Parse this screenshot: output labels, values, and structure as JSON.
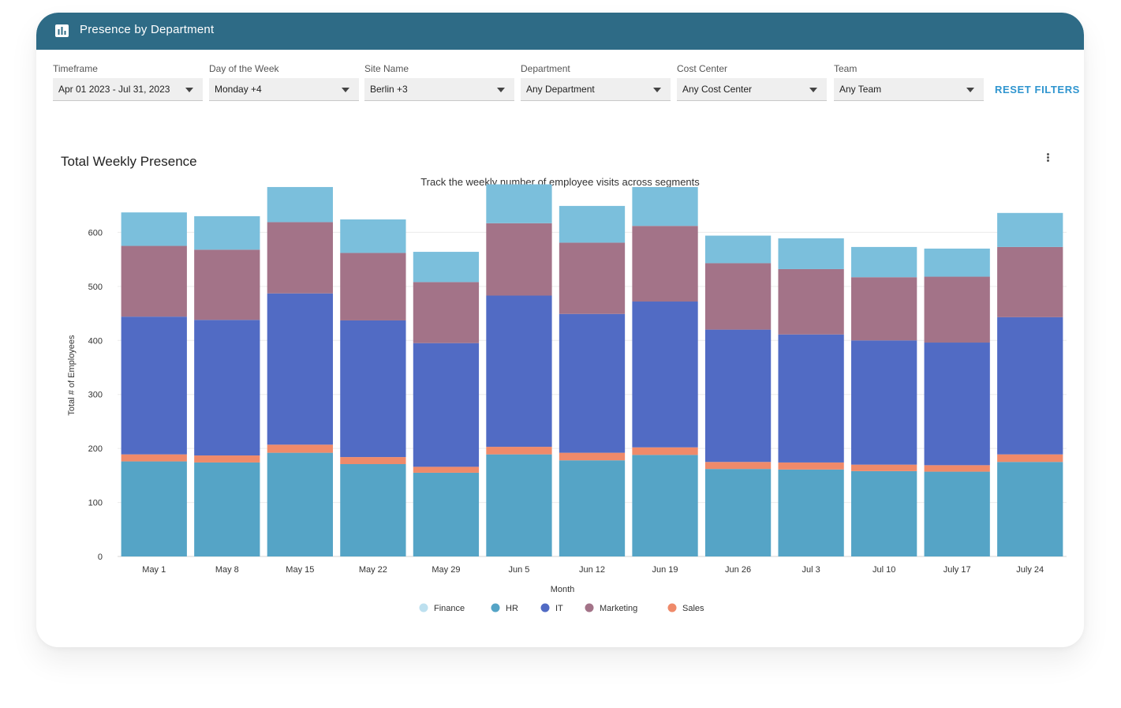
{
  "header": {
    "title": "Presence by Department",
    "icon": "bar-chart-icon"
  },
  "filters": [
    {
      "label": "Timeframe",
      "value": "Apr 01 2023 - Jul 31, 2023"
    },
    {
      "label": "Day of the Week",
      "value": "Monday +4"
    },
    {
      "label": "Site Name",
      "value": "Berlin +3"
    },
    {
      "label": "Department",
      "value": "Any Department"
    },
    {
      "label": "Cost Center",
      "value": "Any Cost Center"
    },
    {
      "label": "Team",
      "value": "Any Team"
    }
  ],
  "reset_label": "RESET FILTERS",
  "chart_title": "Total Weekly Presence",
  "chart_data": {
    "type": "bar",
    "stacked": true,
    "subtitle": "Track the weekly number of employee visits across segments",
    "xlabel": "Month",
    "ylabel": "Total # of Employees",
    "ylim": [
      0,
      700
    ],
    "yticks": [
      0,
      100,
      200,
      300,
      400,
      500,
      600
    ],
    "grid": true,
    "legend_position": "bottom",
    "categories": [
      "May 1",
      "May 8",
      "May 15",
      "May 22",
      "May 29",
      "Jun 5",
      "Jun 12",
      "Jun 19",
      "Jun 26",
      "Jul 3",
      "Jul 10",
      "July 17",
      "July 24"
    ],
    "stack_order": [
      "HR",
      "Sales",
      "IT",
      "Marketing",
      "Finance"
    ],
    "series": [
      {
        "name": "Finance",
        "color": "#7bbfdc",
        "values": [
          62,
          62,
          65,
          62,
          56,
          72,
          68,
          72,
          51,
          57,
          56,
          52,
          63
        ]
      },
      {
        "name": "HR",
        "color": "#55a4c6",
        "values": [
          176,
          174,
          192,
          171,
          155,
          189,
          178,
          188,
          162,
          161,
          158,
          157,
          175
        ]
      },
      {
        "name": "IT",
        "color": "#516bc4",
        "values": [
          255,
          251,
          280,
          253,
          229,
          280,
          257,
          270,
          245,
          237,
          230,
          227,
          254
        ]
      },
      {
        "name": "Marketing",
        "color": "#a37388",
        "values": [
          131,
          130,
          132,
          125,
          113,
          134,
          132,
          140,
          123,
          121,
          117,
          122,
          130
        ]
      },
      {
        "name": "Sales",
        "color": "#ef8a6a",
        "values": [
          13,
          13,
          15,
          13,
          11,
          14,
          14,
          14,
          13,
          13,
          12,
          12,
          14
        ]
      }
    ]
  }
}
